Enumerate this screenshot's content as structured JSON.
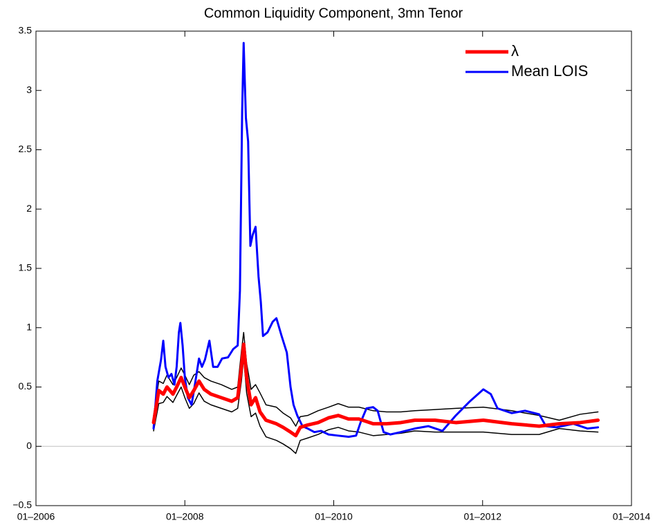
{
  "chart_data": {
    "type": "line",
    "title": "Common Liquidity Component, 3mn Tenor",
    "xlim": [
      2006,
      2014
    ],
    "xticks": [
      {
        "value": 2006,
        "label": "01–2006"
      },
      {
        "value": 2008,
        "label": "01–2008"
      },
      {
        "value": 2010,
        "label": "01–2010"
      },
      {
        "value": 2012,
        "label": "01–2012"
      },
      {
        "value": 2014,
        "label": "01–2014"
      }
    ],
    "ylim": [
      -0.5,
      3.5
    ],
    "yticks": [
      {
        "value": -0.5,
        "label": "−0.5"
      },
      0,
      0.5,
      1,
      1.5,
      2,
      2.5,
      3,
      3.5
    ],
    "zero_line": true,
    "legend": "upper right",
    "series": [
      {
        "name": "λ",
        "color": "#ff0000",
        "linewidth": 5,
        "x": [
          2007.58,
          2007.65,
          2007.71,
          2007.76,
          2007.84,
          2007.89,
          2007.95,
          2008.0,
          2008.06,
          2008.12,
          2008.19,
          2008.26,
          2008.35,
          2008.49,
          2008.63,
          2008.71,
          2008.76,
          2008.79,
          2008.83,
          2008.89,
          2008.95,
          2009.01,
          2009.09,
          2009.23,
          2009.32,
          2009.42,
          2009.49,
          2009.55,
          2009.65,
          2009.79,
          2009.93,
          2010.06,
          2010.2,
          2010.34,
          2010.53,
          2010.71,
          2010.9,
          2011.09,
          2011.36,
          2011.64,
          2012.01,
          2012.39,
          2012.76,
          2013.03,
          2013.31,
          2013.55
        ],
        "values": [
          0.2,
          0.47,
          0.44,
          0.5,
          0.44,
          0.5,
          0.58,
          0.5,
          0.41,
          0.47,
          0.55,
          0.48,
          0.44,
          0.41,
          0.38,
          0.41,
          0.67,
          0.86,
          0.58,
          0.35,
          0.41,
          0.29,
          0.22,
          0.19,
          0.16,
          0.12,
          0.09,
          0.16,
          0.18,
          0.2,
          0.24,
          0.26,
          0.23,
          0.23,
          0.19,
          0.19,
          0.2,
          0.22,
          0.22,
          0.2,
          0.22,
          0.19,
          0.17,
          0.19,
          0.2,
          0.22
        ]
      },
      {
        "name": "Mean LOIS",
        "color": "#0000ff",
        "linewidth": 3,
        "x": [
          2007.58,
          2007.63,
          2007.68,
          2007.71,
          2007.74,
          2007.78,
          2007.82,
          2007.86,
          2007.89,
          2007.92,
          2007.94,
          2007.97,
          2008.0,
          2008.04,
          2008.09,
          2008.13,
          2008.19,
          2008.23,
          2008.27,
          2008.33,
          2008.38,
          2008.44,
          2008.5,
          2008.58,
          2008.65,
          2008.71,
          2008.74,
          2008.77,
          2008.79,
          2008.82,
          2008.85,
          2008.88,
          2008.91,
          2008.95,
          2008.99,
          2009.02,
          2009.05,
          2009.11,
          2009.18,
          2009.23,
          2009.3,
          2009.37,
          2009.42,
          2009.46,
          2009.51,
          2009.58,
          2009.65,
          2009.74,
          2009.83,
          2009.93,
          2010.06,
          2010.2,
          2010.3,
          2010.36,
          2010.44,
          2010.53,
          2010.59,
          2010.67,
          2010.76,
          2010.9,
          2011.09,
          2011.27,
          2011.46,
          2011.64,
          2011.83,
          2012.01,
          2012.11,
          2012.2,
          2012.39,
          2012.57,
          2012.76,
          2012.85,
          2012.99,
          2013.22,
          2013.41,
          2013.55
        ],
        "values": [
          0.15,
          0.55,
          0.73,
          0.89,
          0.67,
          0.58,
          0.61,
          0.52,
          0.67,
          0.96,
          1.04,
          0.85,
          0.58,
          0.41,
          0.35,
          0.5,
          0.74,
          0.67,
          0.73,
          0.89,
          0.67,
          0.67,
          0.74,
          0.75,
          0.82,
          0.85,
          1.31,
          2.83,
          3.4,
          2.77,
          2.57,
          1.69,
          1.78,
          1.85,
          1.43,
          1.22,
          0.93,
          0.96,
          1.05,
          1.08,
          0.93,
          0.79,
          0.5,
          0.35,
          0.26,
          0.17,
          0.15,
          0.12,
          0.13,
          0.1,
          0.09,
          0.08,
          0.09,
          0.2,
          0.32,
          0.33,
          0.3,
          0.12,
          0.1,
          0.12,
          0.15,
          0.17,
          0.13,
          0.26,
          0.38,
          0.48,
          0.44,
          0.32,
          0.28,
          0.3,
          0.27,
          0.17,
          0.16,
          0.19,
          0.15,
          0.16
        ]
      },
      {
        "color": "#000000",
        "linewidth": 1.5,
        "x": [
          2007.58,
          2007.65,
          2007.71,
          2007.76,
          2007.84,
          2007.89,
          2007.95,
          2008.0,
          2008.06,
          2008.12,
          2008.19,
          2008.26,
          2008.35,
          2008.49,
          2008.63,
          2008.71,
          2008.76,
          2008.79,
          2008.83,
          2008.89,
          2008.95,
          2009.01,
          2009.09,
          2009.23,
          2009.32,
          2009.42,
          2009.49,
          2009.55,
          2009.65,
          2009.79,
          2009.93,
          2010.06,
          2010.2,
          2010.34,
          2010.53,
          2010.71,
          2010.9,
          2011.09,
          2011.36,
          2011.64,
          2012.01,
          2012.39,
          2012.76,
          2013.03,
          2013.31,
          2013.55
        ],
        "values": [
          0.26,
          0.55,
          0.53,
          0.6,
          0.52,
          0.58,
          0.66,
          0.6,
          0.52,
          0.6,
          0.63,
          0.58,
          0.55,
          0.52,
          0.48,
          0.5,
          0.8,
          0.96,
          0.7,
          0.48,
          0.52,
          0.45,
          0.35,
          0.33,
          0.28,
          0.24,
          0.17,
          0.25,
          0.26,
          0.3,
          0.33,
          0.36,
          0.33,
          0.33,
          0.3,
          0.29,
          0.29,
          0.3,
          0.31,
          0.32,
          0.33,
          0.3,
          0.26,
          0.22,
          0.27,
          0.29
        ]
      },
      {
        "color": "#000000",
        "linewidth": 1.5,
        "x": [
          2007.58,
          2007.65,
          2007.71,
          2007.76,
          2007.84,
          2007.89,
          2007.95,
          2008.0,
          2008.06,
          2008.12,
          2008.19,
          2008.26,
          2008.35,
          2008.49,
          2008.63,
          2008.71,
          2008.76,
          2008.79,
          2008.83,
          2008.89,
          2008.95,
          2009.01,
          2009.09,
          2009.23,
          2009.32,
          2009.42,
          2009.49,
          2009.55,
          2009.65,
          2009.79,
          2009.93,
          2010.06,
          2010.2,
          2010.34,
          2010.53,
          2010.71,
          2010.9,
          2011.09,
          2011.36,
          2011.64,
          2012.01,
          2012.39,
          2012.76,
          2013.03,
          2013.31,
          2013.55
        ],
        "values": [
          0.13,
          0.36,
          0.37,
          0.42,
          0.37,
          0.43,
          0.5,
          0.41,
          0.32,
          0.36,
          0.45,
          0.38,
          0.35,
          0.32,
          0.29,
          0.32,
          0.55,
          0.75,
          0.45,
          0.25,
          0.28,
          0.17,
          0.08,
          0.05,
          0.02,
          -0.02,
          -0.06,
          0.05,
          0.07,
          0.1,
          0.14,
          0.16,
          0.13,
          0.12,
          0.09,
          0.1,
          0.11,
          0.13,
          0.12,
          0.12,
          0.12,
          0.1,
          0.1,
          0.15,
          0.13,
          0.12
        ]
      }
    ]
  }
}
